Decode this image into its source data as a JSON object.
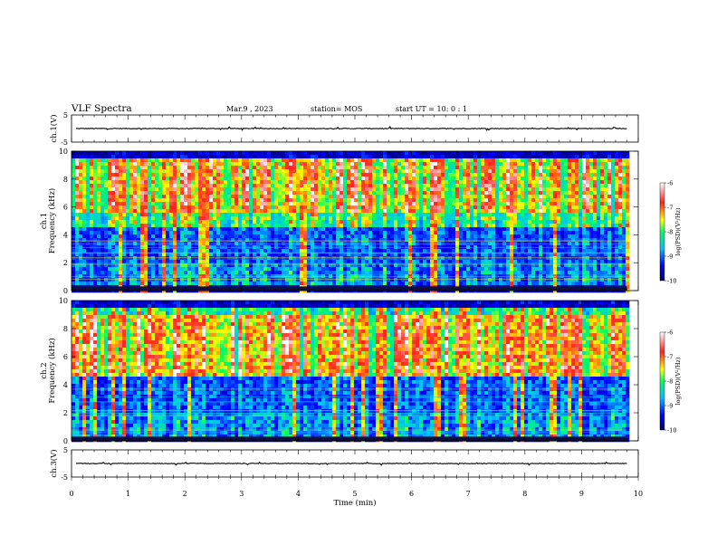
{
  "header": {
    "title": "VLF Spectra",
    "date": "Mar.9 , 2023",
    "station": "station= MOS",
    "start": "start UT = 10: 0 : 1"
  },
  "chart_data": [
    {
      "type": "line",
      "id": "ch1_waveform",
      "ylabel": "ch.1(V)",
      "ylim": [
        -5,
        5
      ],
      "y_ticks": [
        "5",
        "-5"
      ],
      "x_range_min": [
        0,
        9.8
      ],
      "baseline_value_V": 0,
      "series_color": "#000000"
    },
    {
      "type": "heatmap",
      "id": "ch1_spectrogram",
      "ylabel_top": "ch.1",
      "ylabel": "Frequency (kHz)",
      "ylim": [
        0,
        10
      ],
      "y_ticks": [
        "0",
        "2",
        "4",
        "6",
        "8",
        "10"
      ],
      "x_range_min": [
        0,
        9.8
      ],
      "colorbar": {
        "label": "log(PSD)(V²/Hz)",
        "range": [
          -10,
          -6
        ],
        "ticks": [
          "-6",
          "-7",
          "-8",
          "-9",
          "-10"
        ],
        "colors": [
          "#000060",
          "#0000ff",
          "#00c0ff",
          "#00ff60",
          "#ffff00",
          "#ff2020",
          "#ffffff"
        ]
      },
      "intense_band_kHz": [
        5.5,
        9.5
      ]
    },
    {
      "type": "heatmap",
      "id": "ch2_spectrogram",
      "ylabel_top": "ch.2",
      "ylabel": "Frequency (kHz)",
      "ylim": [
        0,
        10
      ],
      "y_ticks": [
        "0",
        "2",
        "4",
        "6",
        "8",
        "10"
      ],
      "x_range_min": [
        0,
        9.8
      ],
      "colorbar": {
        "label": "log(PSD)(V²/Hz)",
        "range": [
          -10,
          -6
        ],
        "ticks": [
          "-6",
          "-7",
          "-8",
          "-9",
          "-10"
        ],
        "colors": [
          "#000060",
          "#0000ff",
          "#00c0ff",
          "#00ff60",
          "#ffff00",
          "#ff2020",
          "#ffffff"
        ]
      },
      "intense_band_kHz": [
        4.5,
        9
      ]
    },
    {
      "type": "line",
      "id": "ch3_waveform",
      "ylabel": "ch.3(V)",
      "ylim": [
        -5,
        5
      ],
      "y_ticks": [
        "5",
        "-5"
      ],
      "x_range_min": [
        0,
        9.8
      ],
      "baseline_value_V": 0,
      "series_color": "#000000"
    }
  ],
  "x_axis": {
    "label": "Time (min)",
    "range": [
      0,
      10
    ],
    "ticks": [
      "0",
      "1",
      "2",
      "3",
      "4",
      "5",
      "6",
      "7",
      "8",
      "9",
      "10"
    ]
  }
}
